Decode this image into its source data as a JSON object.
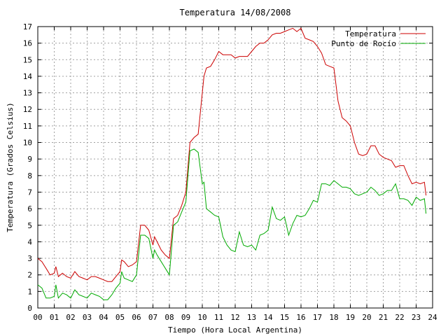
{
  "chart_data": {
    "type": "line",
    "title": "Temperatura 14/08/2008",
    "xlabel": "Tiempo (Hora Local Argentina)",
    "ylabel": "Temperatura (Grados Celsius)",
    "xlim": [
      0,
      24
    ],
    "ylim": [
      0,
      17
    ],
    "xticks": [
      0,
      1,
      2,
      3,
      4,
      5,
      6,
      7,
      8,
      9,
      10,
      11,
      12,
      13,
      14,
      15,
      16,
      17,
      18,
      19,
      20,
      21,
      22,
      23,
      24
    ],
    "xtick_labels": [
      "00",
      "01",
      "02",
      "03",
      "04",
      "05",
      "06",
      "07",
      "08",
      "09",
      "10",
      "11",
      "12",
      "13",
      "14",
      "15",
      "16",
      "17",
      "18",
      "19",
      "20",
      "21",
      "22",
      "23",
      "24"
    ],
    "yticks": [
      0,
      1,
      2,
      3,
      4,
      5,
      6,
      7,
      8,
      9,
      10,
      11,
      12,
      13,
      14,
      15,
      16,
      17
    ],
    "grid": true,
    "legend_position": "top-right",
    "series": [
      {
        "name": "Temperatura",
        "color": "#cc0000",
        "x": [
          0,
          0.25,
          0.5,
          0.75,
          1,
          1.1,
          1.25,
          1.5,
          1.75,
          2,
          2.25,
          2.5,
          2.75,
          3,
          3.25,
          3.5,
          3.75,
          4,
          4.25,
          4.5,
          4.75,
          5,
          5.1,
          5.25,
          5.5,
          5.75,
          6,
          6.25,
          6.5,
          6.75,
          7,
          7.1,
          7.25,
          7.5,
          7.75,
          8,
          8.25,
          8.5,
          8.75,
          9,
          9.25,
          9.5,
          9.75,
          10,
          10.1,
          10.25,
          10.5,
          10.75,
          11,
          11.25,
          11.5,
          11.75,
          12,
          12.25,
          12.5,
          12.75,
          13,
          13.25,
          13.5,
          13.75,
          14,
          14.25,
          14.5,
          14.75,
          15,
          15.25,
          15.5,
          15.75,
          16,
          16.25,
          16.5,
          16.75,
          17,
          17.25,
          17.5,
          17.75,
          18,
          18.25,
          18.5,
          18.75,
          19,
          19.25,
          19.5,
          19.75,
          20,
          20.25,
          20.5,
          20.75,
          21,
          21.25,
          21.5,
          21.75,
          22,
          22.25,
          22.5,
          22.75,
          23,
          23.25,
          23.5,
          23.6
        ],
        "values": [
          3.0,
          2.8,
          2.4,
          2.0,
          2.1,
          2.5,
          1.9,
          2.1,
          1.9,
          1.8,
          2.2,
          1.9,
          1.8,
          1.7,
          1.9,
          1.9,
          1.8,
          1.7,
          1.6,
          1.6,
          1.9,
          2.2,
          2.9,
          2.8,
          2.5,
          2.6,
          2.8,
          5.0,
          5.0,
          4.7,
          3.8,
          4.3,
          4.0,
          3.5,
          3.2,
          3.0,
          5.4,
          5.6,
          6.2,
          7.0,
          10.0,
          10.3,
          10.5,
          13.0,
          14.0,
          14.5,
          14.6,
          15.0,
          15.5,
          15.3,
          15.3,
          15.3,
          15.1,
          15.2,
          15.2,
          15.2,
          15.5,
          15.8,
          16.0,
          16.0,
          16.2,
          16.5,
          16.6,
          16.6,
          16.7,
          16.8,
          16.9,
          16.7,
          16.9,
          16.3,
          16.2,
          16.1,
          15.8,
          15.4,
          14.7,
          14.6,
          14.5,
          12.5,
          11.5,
          11.3,
          11.0,
          10.0,
          9.3,
          9.2,
          9.3,
          9.8,
          9.8,
          9.3,
          9.1,
          9.0,
          8.9,
          8.5,
          8.6,
          8.6,
          8.0,
          7.5,
          7.6,
          7.5,
          7.6,
          6.8
        ]
      },
      {
        "name": "Punto de Rocío",
        "color": "#00aa00",
        "x": [
          0,
          0.25,
          0.5,
          0.75,
          1,
          1.1,
          1.25,
          1.5,
          1.75,
          2,
          2.25,
          2.5,
          2.75,
          3,
          3.25,
          3.5,
          3.75,
          4,
          4.25,
          4.5,
          4.75,
          5,
          5.1,
          5.25,
          5.5,
          5.75,
          6,
          6.25,
          6.5,
          6.75,
          7,
          7.1,
          7.25,
          7.5,
          7.75,
          8,
          8.25,
          8.5,
          8.75,
          9,
          9.25,
          9.5,
          9.75,
          10,
          10.1,
          10.25,
          10.5,
          10.75,
          11,
          11.25,
          11.5,
          11.75,
          12,
          12.25,
          12.5,
          12.75,
          13,
          13.25,
          13.5,
          13.75,
          14,
          14.25,
          14.5,
          14.75,
          15,
          15.25,
          15.5,
          15.75,
          16,
          16.25,
          16.5,
          16.75,
          17,
          17.25,
          17.5,
          17.75,
          18,
          18.25,
          18.5,
          18.75,
          19,
          19.25,
          19.5,
          19.75,
          20,
          20.25,
          20.5,
          20.75,
          21,
          21.25,
          21.5,
          21.75,
          22,
          22.25,
          22.5,
          22.75,
          23,
          23.25,
          23.5,
          23.6
        ],
        "values": [
          1.4,
          1.2,
          0.6,
          0.6,
          0.7,
          1.4,
          0.6,
          0.9,
          0.8,
          0.6,
          1.1,
          0.8,
          0.7,
          0.6,
          0.9,
          0.8,
          0.7,
          0.5,
          0.5,
          0.8,
          1.2,
          1.5,
          2.2,
          1.8,
          1.7,
          1.6,
          2.0,
          4.4,
          4.4,
          4.2,
          3.0,
          3.5,
          3.2,
          2.8,
          2.4,
          2.0,
          5.0,
          5.2,
          5.8,
          6.4,
          9.5,
          9.6,
          9.4,
          7.5,
          7.6,
          6.0,
          5.8,
          5.6,
          5.5,
          4.3,
          3.8,
          3.5,
          3.4,
          4.6,
          3.8,
          3.7,
          3.8,
          3.5,
          4.4,
          4.5,
          4.7,
          6.1,
          5.4,
          5.3,
          5.5,
          4.4,
          5.1,
          5.6,
          5.5,
          5.6,
          6.0,
          6.5,
          6.4,
          7.5,
          7.5,
          7.4,
          7.7,
          7.5,
          7.3,
          7.3,
          7.2,
          6.9,
          6.8,
          6.9,
          7.0,
          7.3,
          7.1,
          6.8,
          6.9,
          7.1,
          7.1,
          7.5,
          6.6,
          6.6,
          6.5,
          6.2,
          6.7,
          6.5,
          6.6,
          5.7
        ]
      }
    ]
  }
}
